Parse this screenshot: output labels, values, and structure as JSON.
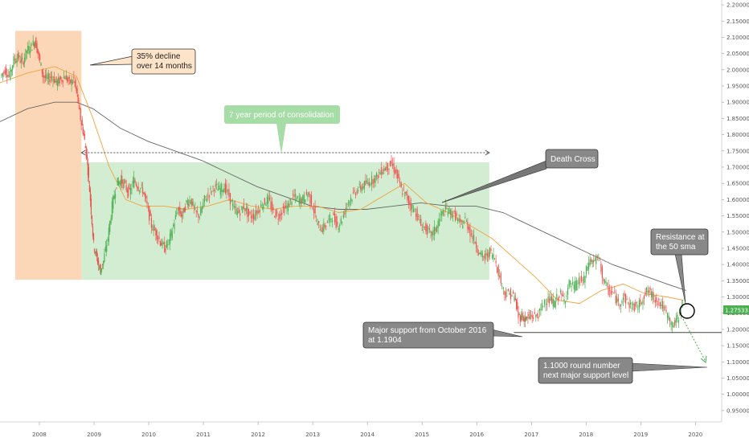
{
  "chart_data": {
    "type": "candlestick",
    "xlim": [
      2007.3,
      2020.5
    ],
    "ylim": [
      0.915,
      2.215
    ],
    "y_axis_side": "right",
    "y_ticks": [
      "2.20000",
      "2.15000",
      "2.10000",
      "2.05000",
      "2.00000",
      "1.95000",
      "1.90000",
      "1.85000",
      "1.80000",
      "1.75000",
      "1.70000",
      "1.65000",
      "1.60000",
      "1.55000",
      "1.50000",
      "1.45000",
      "1.40000",
      "1.35000",
      "1.30000",
      "1.25000",
      "1.20000",
      "1.15000",
      "1.10000",
      "1.05000",
      "1.00000",
      "0.95000"
    ],
    "x_ticks": [
      "2008",
      "2009",
      "2010",
      "2011",
      "2012",
      "2013",
      "2014",
      "2015",
      "2016",
      "2017",
      "2018",
      "2019",
      "2020"
    ],
    "current_price": "1.27533",
    "colors": {
      "up": "#4caf50",
      "down": "#ef5350",
      "sma50": "#f2a23c",
      "sma200": "#666666",
      "decline_zone": "#f9c9a0",
      "consolidation_zone": "#9bd79b",
      "callout_orange": "#fde3c8",
      "callout_green": "#a6dca6",
      "callout_gray": "#888888",
      "price_label": "#4caf50"
    },
    "price": [
      [
        2007.32,
        1.98
      ],
      [
        2007.4,
        2.0
      ],
      [
        2007.48,
        1.98
      ],
      [
        2007.56,
        2.03
      ],
      [
        2007.64,
        2.04
      ],
      [
        2007.72,
        2.02
      ],
      [
        2007.8,
        2.06
      ],
      [
        2007.88,
        2.07
      ],
      [
        2007.95,
        2.09
      ],
      [
        2008.02,
        2.04
      ],
      [
        2008.1,
        1.98
      ],
      [
        2008.18,
        1.97
      ],
      [
        2008.26,
        1.98
      ],
      [
        2008.34,
        1.96
      ],
      [
        2008.42,
        1.97
      ],
      [
        2008.5,
        1.98
      ],
      [
        2008.58,
        1.96
      ],
      [
        2008.66,
        1.97
      ],
      [
        2008.72,
        1.92
      ],
      [
        2008.78,
        1.85
      ],
      [
        2008.84,
        1.8
      ],
      [
        2008.9,
        1.72
      ],
      [
        2008.96,
        1.6
      ],
      [
        2009.02,
        1.46
      ],
      [
        2009.08,
        1.42
      ],
      [
        2009.14,
        1.38
      ],
      [
        2009.2,
        1.41
      ],
      [
        2009.28,
        1.48
      ],
      [
        2009.36,
        1.58
      ],
      [
        2009.44,
        1.65
      ],
      [
        2009.52,
        1.66
      ],
      [
        2009.6,
        1.64
      ],
      [
        2009.68,
        1.62
      ],
      [
        2009.76,
        1.66
      ],
      [
        2009.84,
        1.64
      ],
      [
        2009.92,
        1.63
      ],
      [
        2010.0,
        1.58
      ],
      [
        2010.08,
        1.52
      ],
      [
        2010.16,
        1.5
      ],
      [
        2010.24,
        1.47
      ],
      [
        2010.32,
        1.45
      ],
      [
        2010.4,
        1.47
      ],
      [
        2010.48,
        1.52
      ],
      [
        2010.56,
        1.57
      ],
      [
        2010.64,
        1.55
      ],
      [
        2010.72,
        1.59
      ],
      [
        2010.8,
        1.6
      ],
      [
        2010.88,
        1.56
      ],
      [
        2010.96,
        1.55
      ],
      [
        2011.05,
        1.6
      ],
      [
        2011.14,
        1.62
      ],
      [
        2011.23,
        1.64
      ],
      [
        2011.32,
        1.63
      ],
      [
        2011.41,
        1.64
      ],
      [
        2011.5,
        1.61
      ],
      [
        2011.59,
        1.57
      ],
      [
        2011.68,
        1.56
      ],
      [
        2011.77,
        1.58
      ],
      [
        2011.86,
        1.55
      ],
      [
        2011.95,
        1.55
      ],
      [
        2012.04,
        1.57
      ],
      [
        2012.13,
        1.59
      ],
      [
        2012.22,
        1.6
      ],
      [
        2012.31,
        1.56
      ],
      [
        2012.4,
        1.55
      ],
      [
        2012.49,
        1.57
      ],
      [
        2012.58,
        1.58
      ],
      [
        2012.67,
        1.61
      ],
      [
        2012.76,
        1.6
      ],
      [
        2012.85,
        1.6
      ],
      [
        2012.94,
        1.62
      ],
      [
        2013.03,
        1.58
      ],
      [
        2013.12,
        1.52
      ],
      [
        2013.21,
        1.51
      ],
      [
        2013.3,
        1.53
      ],
      [
        2013.39,
        1.55
      ],
      [
        2013.48,
        1.52
      ],
      [
        2013.57,
        1.54
      ],
      [
        2013.66,
        1.59
      ],
      [
        2013.75,
        1.61
      ],
      [
        2013.84,
        1.63
      ],
      [
        2013.93,
        1.64
      ],
      [
        2014.02,
        1.65
      ],
      [
        2014.11,
        1.66
      ],
      [
        2014.2,
        1.67
      ],
      [
        2014.29,
        1.69
      ],
      [
        2014.38,
        1.7
      ],
      [
        2014.47,
        1.71
      ],
      [
        2014.56,
        1.68
      ],
      [
        2014.65,
        1.63
      ],
      [
        2014.74,
        1.61
      ],
      [
        2014.83,
        1.58
      ],
      [
        2014.92,
        1.56
      ],
      [
        2015.01,
        1.52
      ],
      [
        2015.1,
        1.51
      ],
      [
        2015.19,
        1.49
      ],
      [
        2015.28,
        1.51
      ],
      [
        2015.37,
        1.55
      ],
      [
        2015.46,
        1.57
      ],
      [
        2015.55,
        1.56
      ],
      [
        2015.64,
        1.55
      ],
      [
        2015.73,
        1.52
      ],
      [
        2015.82,
        1.54
      ],
      [
        2015.91,
        1.5
      ],
      [
        2016.0,
        1.47
      ],
      [
        2016.09,
        1.43
      ],
      [
        2016.18,
        1.42
      ],
      [
        2016.27,
        1.44
      ],
      [
        2016.36,
        1.42
      ],
      [
        2016.45,
        1.36
      ],
      [
        2016.54,
        1.31
      ],
      [
        2016.63,
        1.31
      ],
      [
        2016.72,
        1.3
      ],
      [
        2016.79,
        1.24
      ],
      [
        2016.86,
        1.24
      ],
      [
        2016.93,
        1.23
      ],
      [
        2017.0,
        1.24
      ],
      [
        2017.09,
        1.24
      ],
      [
        2017.18,
        1.25
      ],
      [
        2017.27,
        1.29
      ],
      [
        2017.36,
        1.29
      ],
      [
        2017.45,
        1.28
      ],
      [
        2017.54,
        1.31
      ],
      [
        2017.63,
        1.29
      ],
      [
        2017.72,
        1.34
      ],
      [
        2017.81,
        1.33
      ],
      [
        2017.9,
        1.35
      ],
      [
        2017.99,
        1.35
      ],
      [
        2018.08,
        1.41
      ],
      [
        2018.17,
        1.41
      ],
      [
        2018.26,
        1.42
      ],
      [
        2018.35,
        1.35
      ],
      [
        2018.44,
        1.32
      ],
      [
        2018.53,
        1.31
      ],
      [
        2018.62,
        1.28
      ],
      [
        2018.71,
        1.3
      ],
      [
        2018.8,
        1.28
      ],
      [
        2018.89,
        1.27
      ],
      [
        2018.98,
        1.27
      ],
      [
        2019.07,
        1.3
      ],
      [
        2019.16,
        1.32
      ],
      [
        2019.25,
        1.3
      ],
      [
        2019.34,
        1.29
      ],
      [
        2019.43,
        1.27
      ],
      [
        2019.52,
        1.24
      ],
      [
        2019.61,
        1.21
      ],
      [
        2019.7,
        1.23
      ],
      [
        2019.79,
        1.28
      ]
    ],
    "sma50": [
      [
        2007.3,
        1.96
      ],
      [
        2007.8,
        1.99
      ],
      [
        2008.3,
        2.01
      ],
      [
        2008.7,
        1.98
      ],
      [
        2009.0,
        1.85
      ],
      [
        2009.3,
        1.7
      ],
      [
        2009.6,
        1.6
      ],
      [
        2009.9,
        1.58
      ],
      [
        2010.3,
        1.58
      ],
      [
        2010.7,
        1.57
      ],
      [
        2011.1,
        1.58
      ],
      [
        2011.5,
        1.6
      ],
      [
        2011.9,
        1.58
      ],
      [
        2012.3,
        1.57
      ],
      [
        2012.7,
        1.58
      ],
      [
        2013.1,
        1.58
      ],
      [
        2013.5,
        1.56
      ],
      [
        2013.9,
        1.57
      ],
      [
        2014.3,
        1.61
      ],
      [
        2014.7,
        1.65
      ],
      [
        2015.1,
        1.59
      ],
      [
        2015.5,
        1.56
      ],
      [
        2015.9,
        1.52
      ],
      [
        2016.3,
        1.48
      ],
      [
        2016.7,
        1.42
      ],
      [
        2017.1,
        1.36
      ],
      [
        2017.5,
        1.29
      ],
      [
        2017.9,
        1.28
      ],
      [
        2018.3,
        1.32
      ],
      [
        2018.7,
        1.34
      ],
      [
        2019.1,
        1.31
      ],
      [
        2019.5,
        1.3
      ],
      [
        2019.8,
        1.29
      ]
    ],
    "sma200": [
      [
        2007.3,
        1.84
      ],
      [
        2007.8,
        1.88
      ],
      [
        2008.3,
        1.9
      ],
      [
        2008.7,
        1.9
      ],
      [
        2009.0,
        1.88
      ],
      [
        2009.5,
        1.82
      ],
      [
        2010.0,
        1.78
      ],
      [
        2010.5,
        1.75
      ],
      [
        2011.0,
        1.72
      ],
      [
        2011.5,
        1.68
      ],
      [
        2012.0,
        1.64
      ],
      [
        2012.5,
        1.61
      ],
      [
        2013.0,
        1.58
      ],
      [
        2013.5,
        1.57
      ],
      [
        2014.0,
        1.57
      ],
      [
        2014.5,
        1.58
      ],
      [
        2015.0,
        1.59
      ],
      [
        2015.5,
        1.58
      ],
      [
        2016.0,
        1.58
      ],
      [
        2016.5,
        1.56
      ],
      [
        2017.0,
        1.52
      ],
      [
        2017.5,
        1.48
      ],
      [
        2018.0,
        1.44
      ],
      [
        2018.5,
        1.4
      ],
      [
        2019.0,
        1.37
      ],
      [
        2019.5,
        1.34
      ],
      [
        2019.85,
        1.32
      ]
    ],
    "zones": {
      "decline": {
        "x0": 2007.58,
        "x1": 2008.79,
        "y0": 1.353,
        "y1": 2.12
      },
      "consolidation": {
        "x0": 2008.79,
        "x1": 2016.25,
        "y0": 1.353,
        "y1": 1.715
      }
    },
    "support_line": {
      "y": 1.1904,
      "x0": 2016.7,
      "x1": 2020.5
    },
    "annotations": {
      "decline": "35% decline\nover 14 months",
      "consolidation": "7 year period of consolidation",
      "death_cross": "Death Cross",
      "resistance": "Resistance at\nthe 50 sma",
      "support": "Major support from October 2016\nat 1.1904",
      "next_support": "1.1000 round number\nnext major support level"
    }
  }
}
